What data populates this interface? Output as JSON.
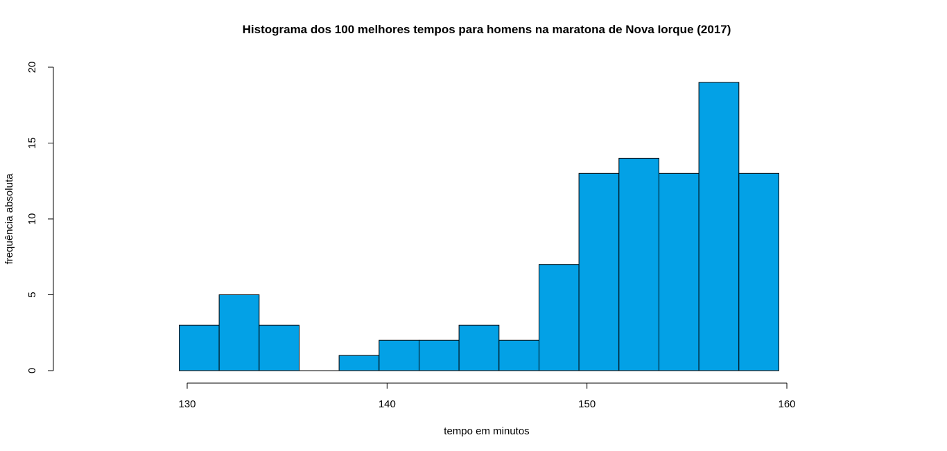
{
  "chart_data": {
    "type": "bar",
    "title": "Histograma dos 100 melhores tempos para homens na maratona de Nova Iorque (2017)",
    "xlabel": "tempo em minutos",
    "ylabel": "frequência absoluta",
    "bar_color": "#03A1E6",
    "bin_edges": [
      129.6,
      131.6,
      133.6,
      135.6,
      137.6,
      139.6,
      141.6,
      143.6,
      145.6,
      147.6,
      149.6,
      151.6,
      153.6,
      155.6,
      157.6,
      159.6
    ],
    "values": [
      3,
      5,
      3,
      0,
      1,
      2,
      2,
      3,
      2,
      7,
      13,
      14,
      13,
      19,
      13
    ],
    "xlim": [
      130,
      160
    ],
    "ylim": [
      0,
      20
    ],
    "x_ticks": [
      130,
      140,
      150,
      160
    ],
    "y_ticks": [
      0,
      5,
      10,
      15,
      20
    ],
    "grid": false,
    "legend": "none"
  }
}
